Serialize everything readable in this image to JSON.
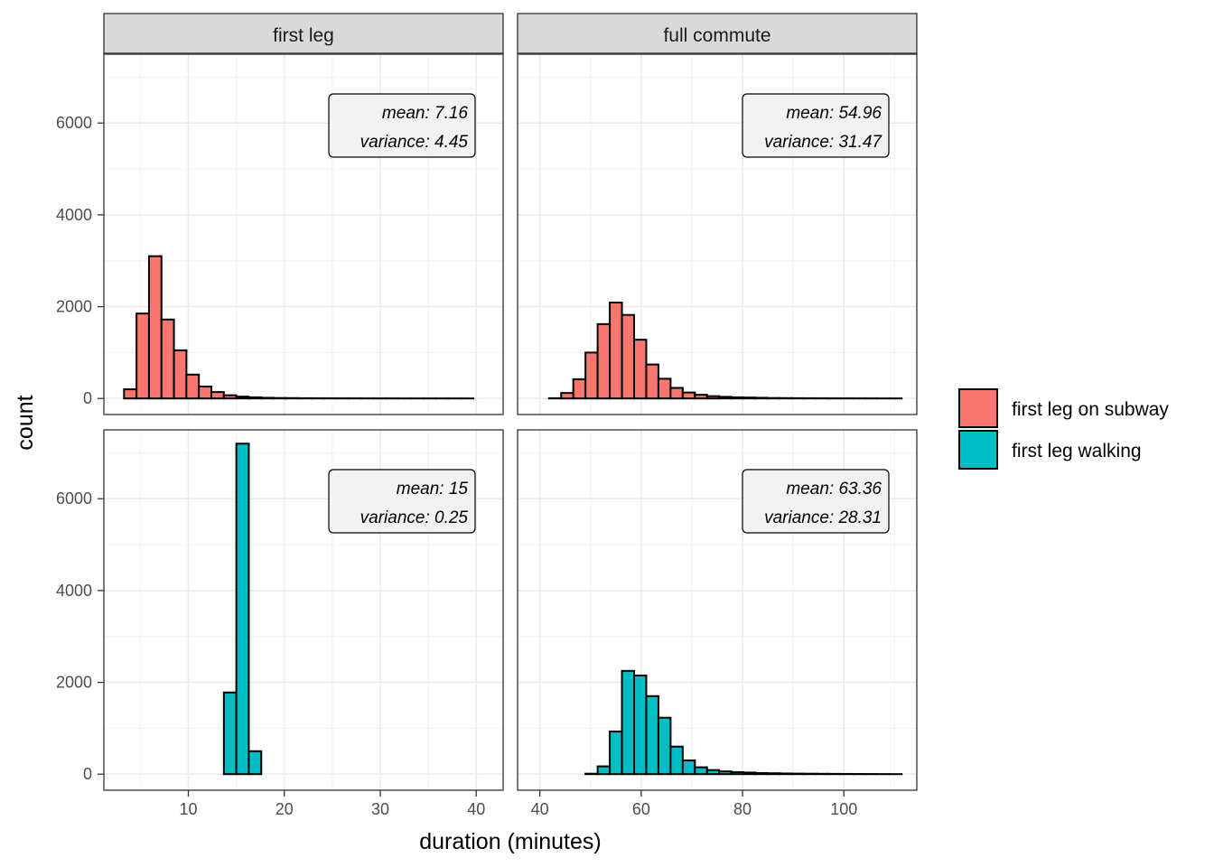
{
  "chart_data": {
    "type": "bar",
    "subtype": "faceted-histogram",
    "xlabel": "duration (minutes)",
    "ylabel": "count",
    "grid": true,
    "legend_position": "right",
    "facet_columns": [
      "first leg",
      "full commute"
    ],
    "legend": [
      {
        "name": "first leg on subway",
        "color": "#F8766D"
      },
      {
        "name": "first leg walking",
        "color": "#00BFC4"
      }
    ],
    "y_ticks": [
      0,
      2000,
      4000,
      6000
    ],
    "ylim": [
      -350,
      7500
    ],
    "panels": [
      {
        "row": "first leg on subway",
        "column": "first leg",
        "xlim": [
          1.2,
          42.8
        ],
        "x_ticks": [
          10,
          20,
          30,
          40
        ],
        "bin_width": 1.3,
        "bin_start": 3.3,
        "counts": [
          200,
          1850,
          3100,
          1720,
          1050,
          520,
          260,
          140,
          70,
          40,
          25,
          15,
          10,
          8,
          6,
          5,
          4,
          3,
          3,
          2,
          2,
          2,
          1,
          1,
          1,
          1,
          1,
          1,
          0
        ],
        "stats": {
          "mean": "mean: 7.16",
          "variance": "variance: 4.45"
        }
      },
      {
        "row": "first leg on subway",
        "column": "full commute",
        "xlim": [
          35.6,
          114.4
        ],
        "x_ticks": [
          40,
          60,
          80,
          100
        ],
        "bin_width": 2.4,
        "bin_start": 39.4,
        "counts": [
          0,
          5,
          120,
          420,
          1000,
          1620,
          2090,
          1820,
          1280,
          740,
          430,
          230,
          130,
          80,
          50,
          35,
          25,
          20,
          15,
          10,
          8,
          6,
          5,
          4,
          3,
          3,
          2,
          2,
          1,
          1
        ],
        "stats": {
          "mean": "mean: 54.96",
          "variance": "variance: 31.47"
        }
      },
      {
        "row": "first leg walking",
        "column": "first leg",
        "xlim": [
          1.2,
          42.8
        ],
        "x_ticks": [
          10,
          20,
          30,
          40
        ],
        "bin_width": 1.3,
        "bin_start": 3.3,
        "counts": [
          0,
          0,
          0,
          0,
          0,
          0,
          0,
          0,
          1780,
          7200,
          500,
          0,
          0,
          0,
          0,
          0,
          0,
          0,
          0,
          0,
          0,
          0,
          0,
          0,
          0,
          0,
          0,
          0,
          0
        ],
        "stats": {
          "mean": "mean: 15",
          "variance": "variance: 0.25"
        }
      },
      {
        "row": "first leg walking",
        "column": "full commute",
        "xlim": [
          35.6,
          114.4
        ],
        "x_ticks": [
          40,
          60,
          80,
          100
        ],
        "bin_width": 2.4,
        "bin_start": 39.4,
        "counts": [
          0,
          0,
          0,
          0,
          10,
          170,
          930,
          2250,
          2150,
          1700,
          1230,
          600,
          300,
          150,
          90,
          60,
          45,
          35,
          25,
          20,
          15,
          12,
          10,
          8,
          6,
          5,
          4,
          3,
          2,
          1
        ],
        "stats": {
          "mean": "mean: 63.36",
          "variance": "variance: 28.31"
        }
      }
    ]
  }
}
